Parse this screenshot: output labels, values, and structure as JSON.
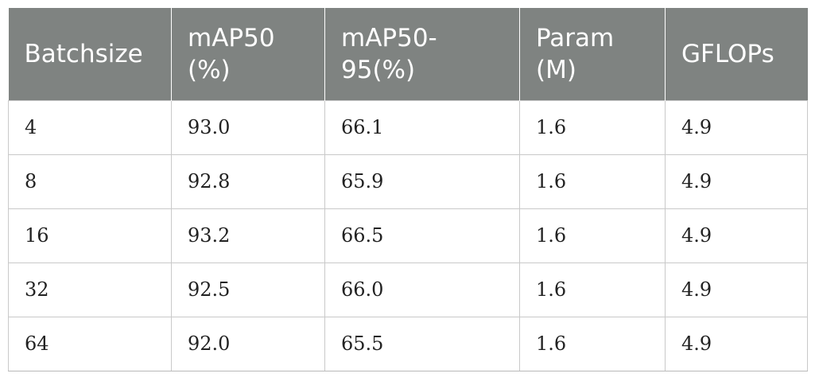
{
  "table": {
    "headers": [
      "Batchsize",
      "mAP50 (%)",
      "mAP50-95(%)",
      "Param (M)",
      "GFLOPs"
    ],
    "rows": [
      [
        "4",
        "93.0",
        "66.1",
        "1.6",
        "4.9"
      ],
      [
        "8",
        "92.8",
        "65.9",
        "1.6",
        "4.9"
      ],
      [
        "16",
        "93.2",
        "66.5",
        "1.6",
        "4.9"
      ],
      [
        "32",
        "92.5",
        "66.0",
        "1.6",
        "4.9"
      ],
      [
        "64",
        "92.0",
        "65.5",
        "1.6",
        "4.9"
      ]
    ]
  },
  "colors": {
    "header_bg": "#7f8381",
    "header_text": "#ffffff",
    "grid_line": "#c9c9c9"
  }
}
